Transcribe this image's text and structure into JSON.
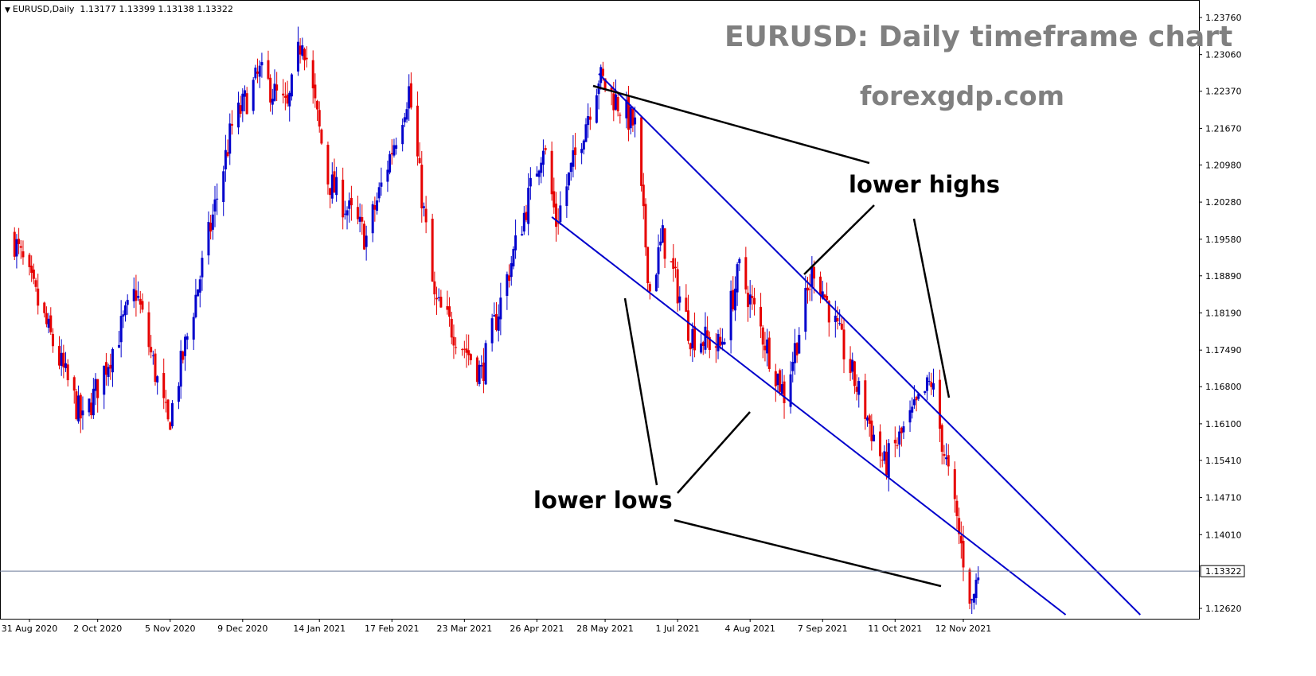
{
  "header": {
    "symbol": "EURUSD,Daily",
    "ohlc": "1.13177 1.13399 1.13138 1.13322"
  },
  "watermark": {
    "title": "EURUSD: Daily timeframe chart",
    "site": "forexgdp.com"
  },
  "annotations": {
    "lower_highs": "lower highs",
    "lower_lows": "lower lows"
  },
  "colors": {
    "bull": "#0000cc",
    "bear": "#e60000",
    "channel": "#0000cc",
    "pointer": "#000000",
    "current_price_line": "#6b7a99"
  },
  "chart_data": {
    "type": "candlestick",
    "symbol": "EURUSD",
    "timeframe": "Daily",
    "current_price": 1.13322,
    "y_ticks": [
      1.2376,
      1.2306,
      1.2237,
      1.2167,
      1.2098,
      1.2028,
      1.1958,
      1.1889,
      1.1819,
      1.1749,
      1.168,
      1.161,
      1.1541,
      1.1471,
      1.1401,
      1.1262
    ],
    "y_tick_labels": [
      "1.23760",
      "1.23060",
      "1.22370",
      "1.21670",
      "1.20980",
      "1.20280",
      "1.19580",
      "1.18890",
      "1.18190",
      "1.17490",
      "1.16800",
      "1.16100",
      "1.15410",
      "1.14710",
      "1.14010",
      "1.12620"
    ],
    "ylim": [
      1.1245,
      1.2394
    ],
    "x_tick_labels": [
      "31 Aug 2020",
      "2 Oct 2020",
      "5 Nov 2020",
      "9 Dec 2020",
      "14 Jan 2021",
      "17 Feb 2021",
      "23 Mar 2021",
      "26 Apr 2021",
      "28 May 2021",
      "1 Jul 2021",
      "4 Aug 2021",
      "7 Sep 2021",
      "11 Oct 2021",
      "12 Nov 2021"
    ],
    "key_points": [
      {
        "date": "2020-08-24",
        "price": 1.1955
      },
      {
        "date": "2020-09-25",
        "price": 1.1612
      },
      {
        "date": "2020-10-20",
        "price": 1.186
      },
      {
        "date": "2020-11-04",
        "price": 1.1605
      },
      {
        "date": "2020-12-04",
        "price": 1.217
      },
      {
        "date": "2020-12-17",
        "price": 1.227
      },
      {
        "date": "2020-12-30",
        "price": 1.22
      },
      {
        "date": "2021-01-06",
        "price": 1.2345
      },
      {
        "date": "2021-01-18",
        "price": 1.207
      },
      {
        "date": "2021-02-05",
        "price": 1.196
      },
      {
        "date": "2021-02-25",
        "price": 1.224
      },
      {
        "date": "2021-03-09",
        "price": 1.184
      },
      {
        "date": "2021-03-31",
        "price": 1.1705
      },
      {
        "date": "2021-04-29",
        "price": 1.214
      },
      {
        "date": "2021-05-05",
        "price": 1.199
      },
      {
        "date": "2021-05-25",
        "price": 1.2265
      },
      {
        "date": "2021-06-11",
        "price": 1.217
      },
      {
        "date": "2021-06-18",
        "price": 1.186
      },
      {
        "date": "2021-06-24",
        "price": 1.196
      },
      {
        "date": "2021-07-07",
        "price": 1.178
      },
      {
        "date": "2021-07-21",
        "price": 1.1755
      },
      {
        "date": "2021-07-30",
        "price": 1.19
      },
      {
        "date": "2021-08-20",
        "price": 1.1665
      },
      {
        "date": "2021-09-03",
        "price": 1.1908
      },
      {
        "date": "2021-10-06",
        "price": 1.153
      },
      {
        "date": "2021-10-28",
        "price": 1.169
      },
      {
        "date": "2021-11-05",
        "price": 1.1512
      },
      {
        "date": "2021-11-16",
        "price": 1.1268
      },
      {
        "date": "2021-11-19",
        "price": 1.1332
      }
    ],
    "channel": {
      "upper": [
        {
          "date": "2021-05-25",
          "price": 1.227
        },
        {
          "date": "2022-02-03",
          "price": 1.125
        }
      ],
      "lower": [
        {
          "date": "2021-05-03",
          "price": 1.2
        },
        {
          "date": "2021-12-30",
          "price": 1.125
        }
      ]
    }
  }
}
